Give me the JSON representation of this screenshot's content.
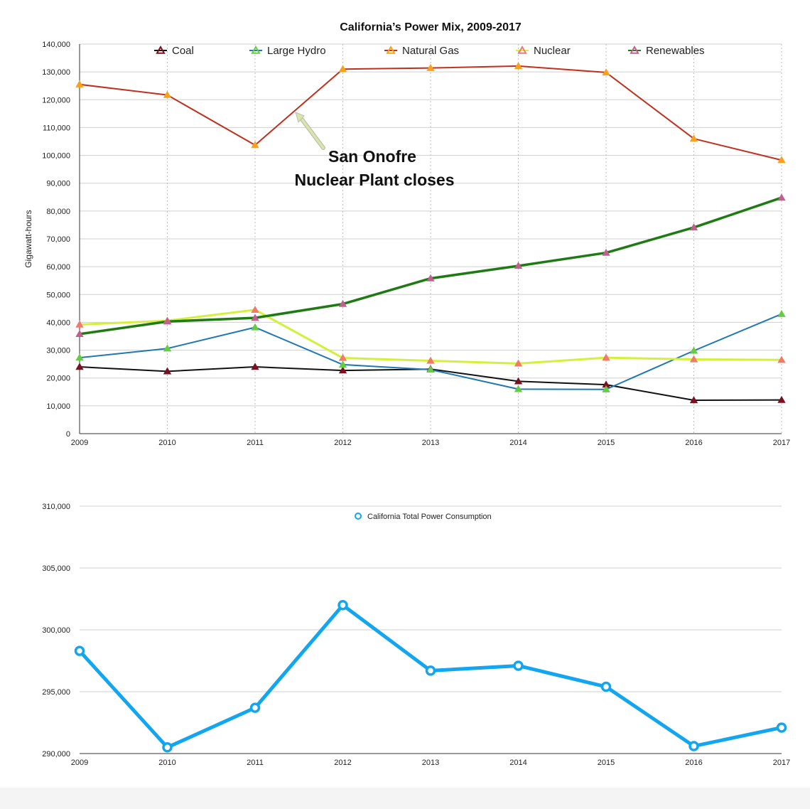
{
  "chart_data": [
    {
      "type": "line",
      "title": "California’s Power Mix, 2009-2017",
      "xlabel": "",
      "ylabel": "Gigawatt-hours",
      "x": [
        "2009",
        "2010",
        "2011",
        "2012",
        "2013",
        "2014",
        "2015",
        "2016",
        "2017"
      ],
      "ylim": [
        0,
        140000
      ],
      "yticks": [
        0,
        10000,
        20000,
        30000,
        40000,
        50000,
        60000,
        70000,
        80000,
        90000,
        100000,
        110000,
        120000,
        130000,
        140000
      ],
      "grid": true,
      "legend_position": "top",
      "annotation": {
        "text_line1": "San Onofre",
        "text_line2": "Nuclear Plant closes",
        "arrow_color": "#d8e8a0",
        "points_to_year": "2011.5",
        "points_to_value": 116000
      },
      "series": [
        {
          "name": "Coal",
          "line_color": "#111111",
          "marker_color": "#7a1020",
          "line_width": 2,
          "values": [
            24000,
            22400,
            24000,
            22700,
            23200,
            18800,
            17600,
            12000,
            12100
          ]
        },
        {
          "name": "Large Hydro",
          "line_color": "#1f77b4",
          "marker_color": "#66cc44",
          "line_width": 2,
          "values": [
            27300,
            30600,
            38200,
            24800,
            23000,
            16000,
            15900,
            29800,
            43000
          ]
        },
        {
          "name": "Natural Gas",
          "line_color": "#c0301c",
          "marker_color": "#f7a21a",
          "line_width": 2,
          "values": [
            125500,
            121700,
            103700,
            131000,
            131400,
            132100,
            129800,
            106000,
            98300
          ]
        },
        {
          "name": "Nuclear",
          "line_color": "#d4f03a",
          "marker_color": "#f07b6a",
          "line_width": 3,
          "values": [
            39200,
            40600,
            44500,
            27200,
            26200,
            25200,
            27300,
            26700,
            26500
          ]
        },
        {
          "name": "Renewables",
          "line_color": "#1e7a12",
          "marker_color": "#c06090",
          "line_width": 3.5,
          "values": [
            35800,
            40300,
            41600,
            46600,
            55800,
            60300,
            65000,
            74100,
            84800
          ]
        }
      ]
    },
    {
      "type": "line",
      "title": "",
      "xlabel": "",
      "ylabel": "",
      "x": [
        "2009",
        "2010",
        "2011",
        "2012",
        "2013",
        "2014",
        "2015",
        "2016",
        "2017"
      ],
      "ylim": [
        290000,
        310000
      ],
      "yticks": [
        290000,
        295000,
        300000,
        305000,
        310000
      ],
      "grid": true,
      "legend_position": "top",
      "series": [
        {
          "name": "California Total Power Consumption",
          "line_color": "#13a6f0",
          "marker_color": "#13a6f0",
          "line_width": 5,
          "values": [
            298300,
            290500,
            293700,
            302000,
            296700,
            297100,
            295400,
            290600,
            292100
          ]
        }
      ]
    }
  ]
}
